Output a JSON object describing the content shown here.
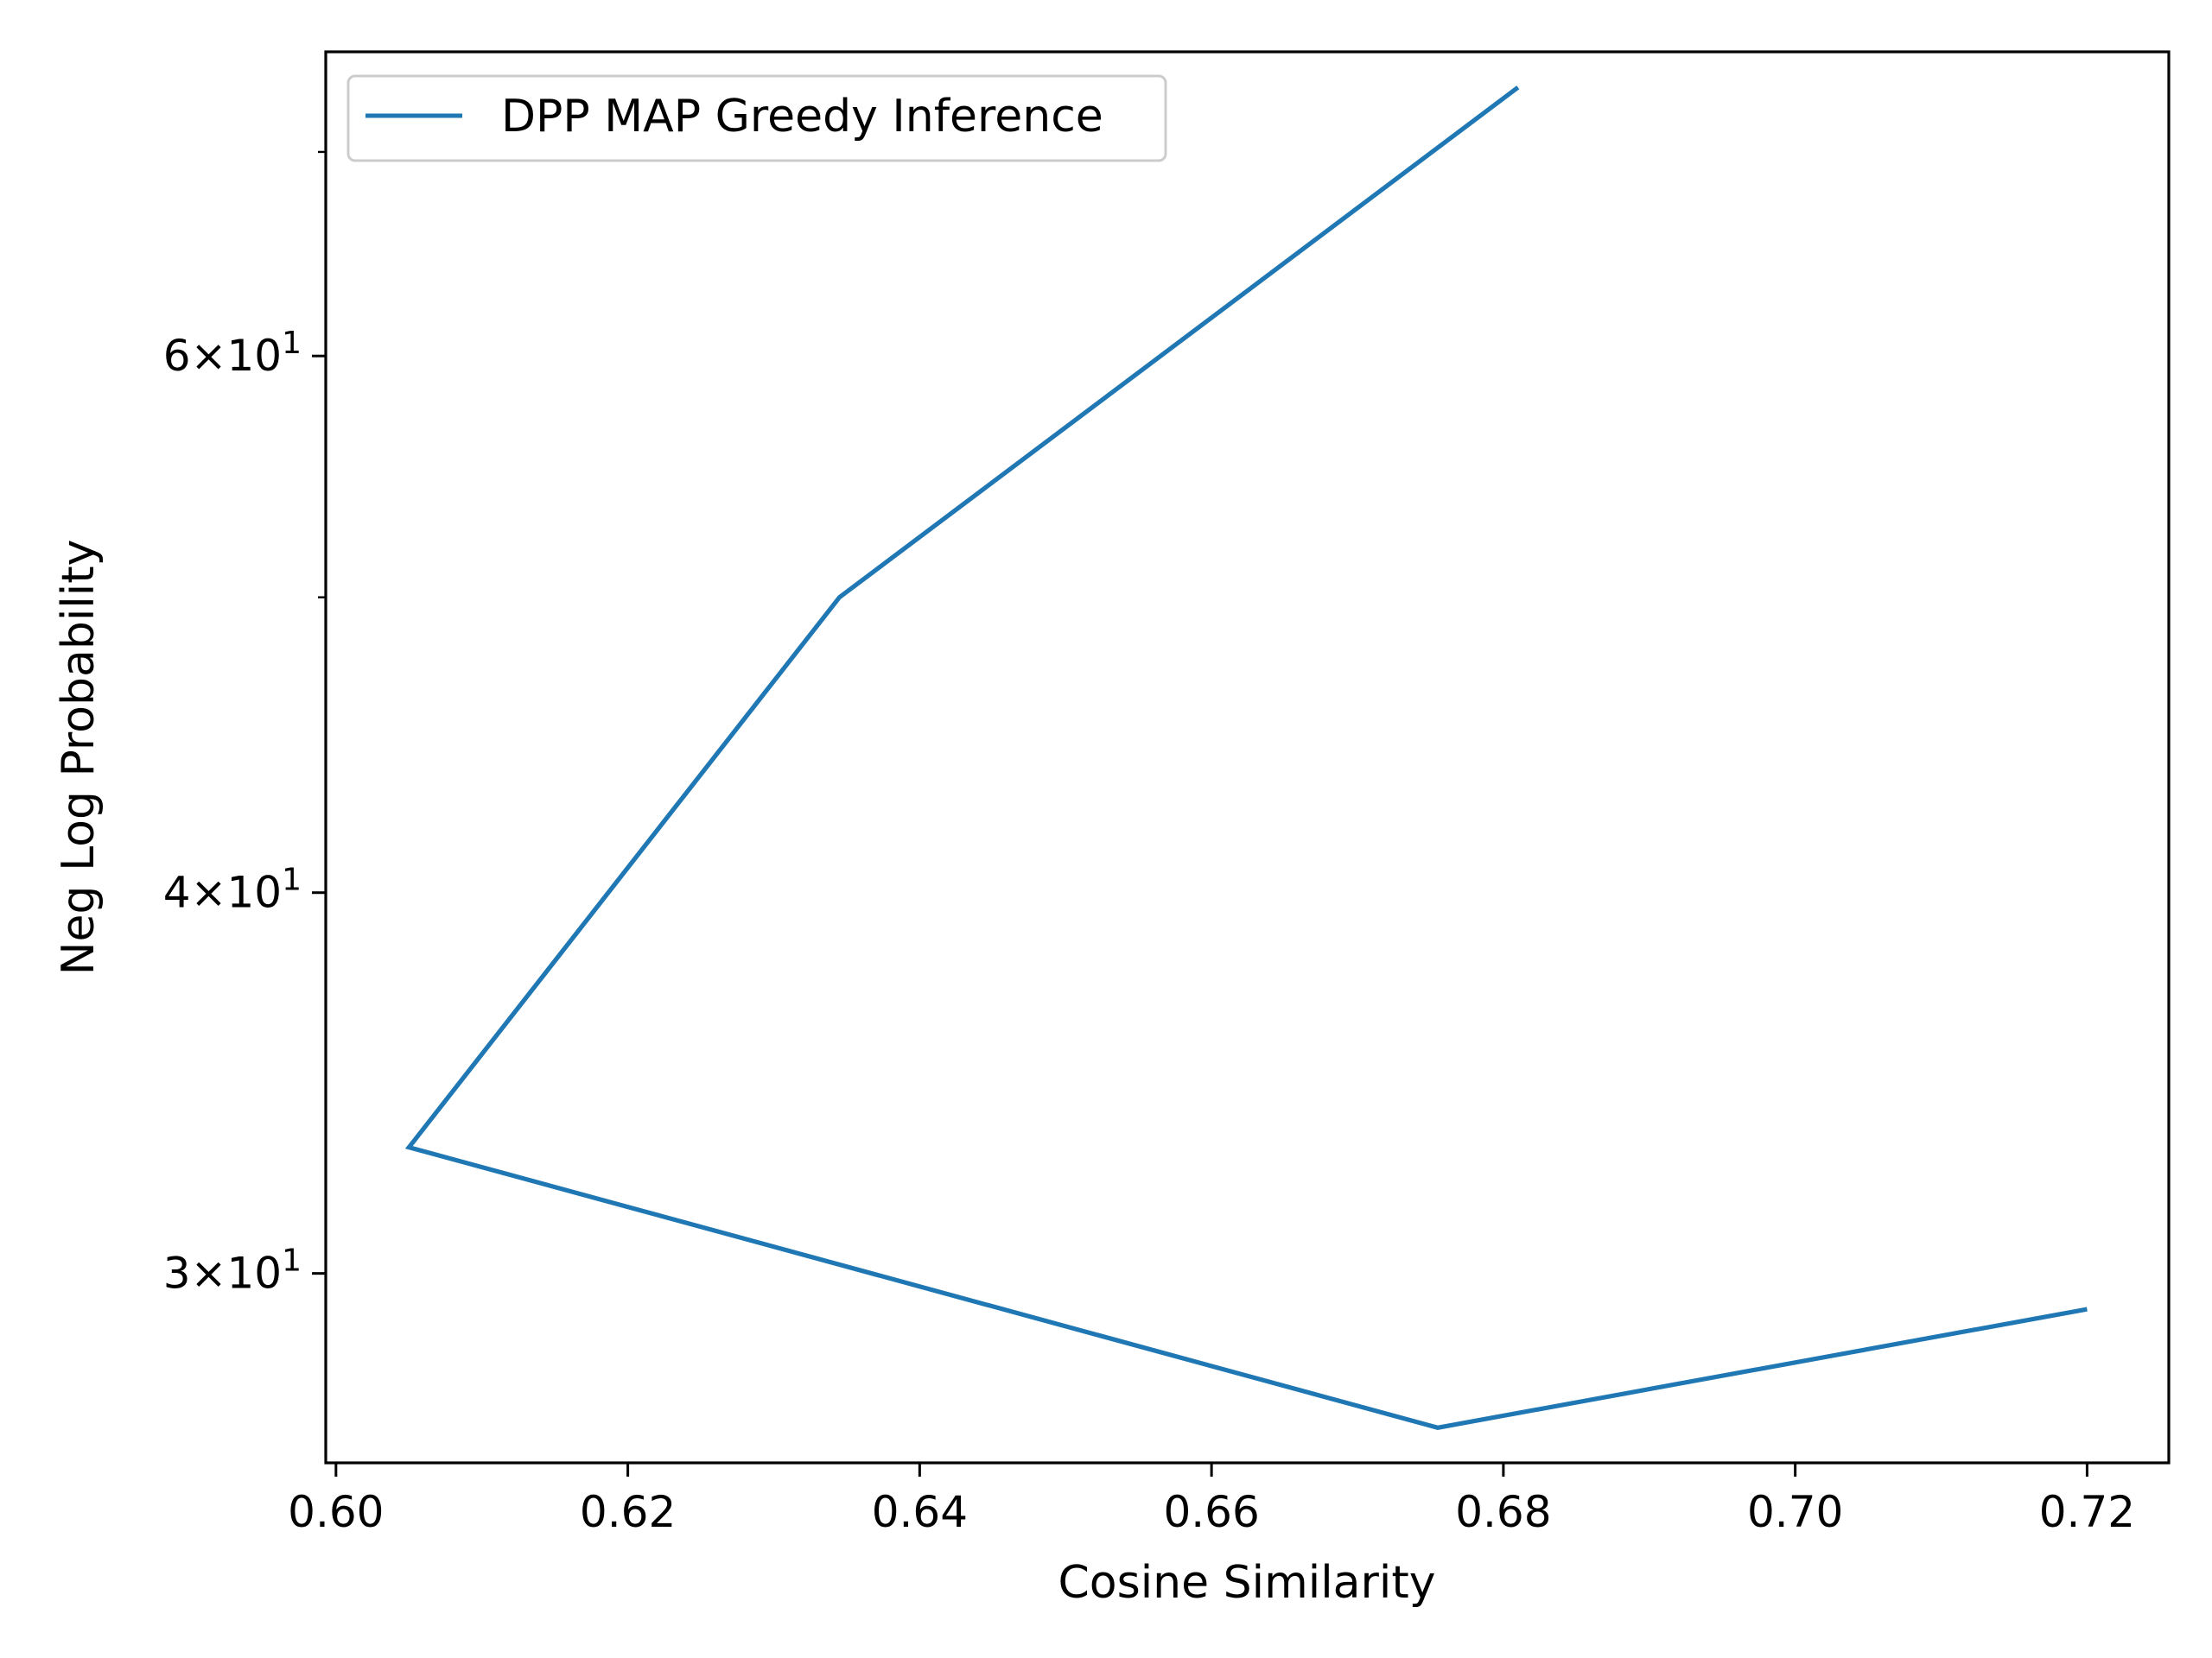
{
  "chart_data": {
    "type": "line",
    "title": "",
    "xlabel": "Cosine Similarity",
    "ylabel": "Neg Log Probability",
    "yscale": "log",
    "xlim": [
      0.5993,
      0.7256
    ],
    "ylim": [
      26.0,
      75.5
    ],
    "grid": false,
    "legend_position": "upper-left",
    "x_ticks": [
      {
        "value": 0.6,
        "label": "0.60"
      },
      {
        "value": 0.62,
        "label": "0.62"
      },
      {
        "value": 0.64,
        "label": "0.64"
      },
      {
        "value": 0.66,
        "label": "0.66"
      },
      {
        "value": 0.68,
        "label": "0.68"
      },
      {
        "value": 0.7,
        "label": "0.70"
      },
      {
        "value": 0.72,
        "label": "0.72"
      }
    ],
    "y_major_ticks": [
      {
        "value": 30,
        "mantissa": "3",
        "base": "10",
        "exp": "1"
      },
      {
        "value": 40,
        "mantissa": "4",
        "base": "10",
        "exp": "1"
      },
      {
        "value": 60,
        "mantissa": "6",
        "base": "10",
        "exp": "1"
      }
    ],
    "y_minor_ticks": [
      50,
      70
    ],
    "series": [
      {
        "name": "DPP MAP Greedy Inference",
        "color": "#1f77b4",
        "x": [
          0.681,
          0.6345,
          0.605,
          0.6755,
          0.72
        ],
        "y": [
          73.5,
          50.0,
          33.0,
          26.7,
          29.2
        ]
      }
    ]
  }
}
